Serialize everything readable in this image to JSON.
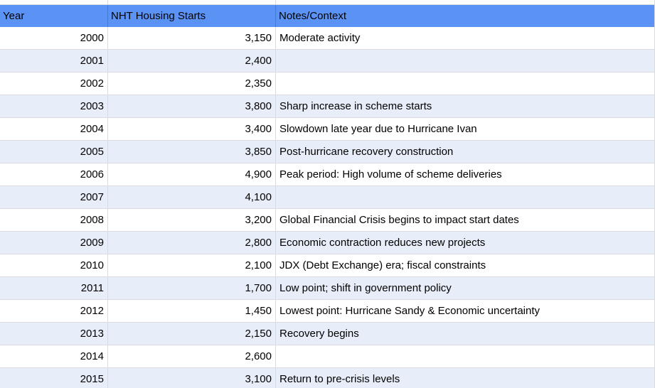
{
  "table": {
    "columns": [
      {
        "label": "Year",
        "align": "right"
      },
      {
        "label": "NHT Housing Starts",
        "align": "right"
      },
      {
        "label": "Notes/Context",
        "align": "left"
      }
    ],
    "rows": [
      {
        "year": "2000",
        "starts": "3,150",
        "note": "Moderate activity"
      },
      {
        "year": "2001",
        "starts": "2,400",
        "note": ""
      },
      {
        "year": "2002",
        "starts": "2,350",
        "note": ""
      },
      {
        "year": "2003",
        "starts": "3,800",
        "note": "Sharp increase in scheme starts"
      },
      {
        "year": "2004",
        "starts": "3,400",
        "note": "Slowdown late year due to Hurricane Ivan"
      },
      {
        "year": "2005",
        "starts": "3,850",
        "note": "Post-hurricane recovery construction"
      },
      {
        "year": "2006",
        "starts": "4,900",
        "note": "Peak period: High volume of scheme deliveries"
      },
      {
        "year": "2007",
        "starts": "4,100",
        "note": ""
      },
      {
        "year": "2008",
        "starts": "3,200",
        "note": "Global Financial Crisis begins to impact start dates"
      },
      {
        "year": "2009",
        "starts": "2,800",
        "note": "Economic contraction reduces new projects"
      },
      {
        "year": "2010",
        "starts": "2,100",
        "note": "JDX (Debt Exchange) era; fiscal constraints"
      },
      {
        "year": "2011",
        "starts": "1,700",
        "note": "Low point; shift in government policy"
      },
      {
        "year": "2012",
        "starts": "1,450",
        "note": "Lowest point: Hurricane Sandy & Economic uncertainty"
      },
      {
        "year": "2013",
        "starts": "2,150",
        "note": "Recovery begins"
      },
      {
        "year": "2014",
        "starts": "2,600",
        "note": ""
      },
      {
        "year": "2015",
        "starts": "3,100",
        "note": "Return to pre-crisis levels"
      }
    ]
  },
  "colors": {
    "header_bg": "#5B93F5",
    "header_divider": "#4478DC",
    "row_band": "#E8EEF9",
    "gridline": "#D9DBDE",
    "text": "#000000"
  }
}
